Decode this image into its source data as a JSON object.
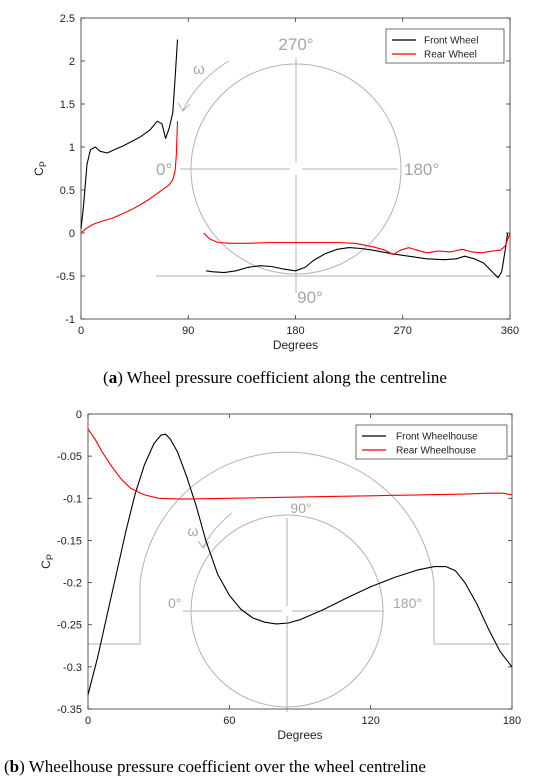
{
  "chart_data": [
    {
      "type": "line",
      "caption_tag": "a",
      "caption_text": "Wheel pressure coefficient along the centreline",
      "xlabel": "Degrees",
      "ylabel": "C",
      "ylabel_sub": "P",
      "xlim": [
        0,
        360
      ],
      "ylim": [
        -1,
        2.5
      ],
      "xticks": [
        "0",
        "90",
        "180",
        "270",
        "360"
      ],
      "yticks": [
        "2.5",
        "2",
        "1.5",
        "1",
        "0.5",
        "0",
        "-0.5",
        "-1"
      ],
      "legend_position": "top-right",
      "overlay_labels": {
        "top": "270°",
        "left": "0°",
        "right": "180°",
        "bottom": "90°",
        "rotation": "ω"
      },
      "series": [
        {
          "name": "Front Wheel",
          "color": "#000000",
          "segments": [
            [
              [
                0,
                0.05
              ],
              [
                2,
                0.3
              ],
              [
                5,
                0.8
              ],
              [
                8,
                0.97
              ],
              [
                12,
                1.0
              ],
              [
                16,
                0.95
              ],
              [
                22,
                0.93
              ],
              [
                28,
                0.97
              ],
              [
                35,
                1.01
              ],
              [
                42,
                1.06
              ],
              [
                50,
                1.12
              ],
              [
                58,
                1.2
              ],
              [
                64,
                1.3
              ],
              [
                68,
                1.27
              ],
              [
                71,
                1.1
              ],
              [
                74,
                1.22
              ],
              [
                77,
                1.4
              ],
              [
                79,
                1.8
              ],
              [
                81,
                2.25
              ]
            ],
            [
              [
                105,
                -0.44
              ],
              [
                110,
                -0.45
              ],
              [
                120,
                -0.46
              ],
              [
                130,
                -0.44
              ],
              [
                140,
                -0.4
              ],
              [
                150,
                -0.38
              ],
              [
                160,
                -0.39
              ],
              [
                170,
                -0.42
              ],
              [
                180,
                -0.44
              ],
              [
                188,
                -0.4
              ],
              [
                195,
                -0.32
              ],
              [
                205,
                -0.24
              ],
              [
                215,
                -0.19
              ],
              [
                225,
                -0.17
              ],
              [
                235,
                -0.18
              ],
              [
                245,
                -0.2
              ],
              [
                260,
                -0.24
              ],
              [
                275,
                -0.27
              ],
              [
                290,
                -0.3
              ],
              [
                305,
                -0.31
              ],
              [
                315,
                -0.3
              ],
              [
                322,
                -0.27
              ],
              [
                330,
                -0.3
              ],
              [
                338,
                -0.35
              ],
              [
                345,
                -0.45
              ],
              [
                350,
                -0.52
              ],
              [
                353,
                -0.45
              ],
              [
                356,
                -0.2
              ],
              [
                358,
                0.0
              ]
            ]
          ]
        },
        {
          "name": "Rear Wheel",
          "color": "#ff0000",
          "segments": [
            [
              [
                0,
                0.0
              ],
              [
                4,
                0.05
              ],
              [
                10,
                0.1
              ],
              [
                18,
                0.14
              ],
              [
                26,
                0.17
              ],
              [
                34,
                0.22
              ],
              [
                42,
                0.27
              ],
              [
                50,
                0.33
              ],
              [
                58,
                0.4
              ],
              [
                64,
                0.46
              ],
              [
                70,
                0.52
              ],
              [
                74,
                0.56
              ],
              [
                77,
                0.62
              ],
              [
                79,
                0.72
              ],
              [
                80,
                0.9
              ],
              [
                81,
                1.3
              ]
            ],
            [
              [
                103,
                0.0
              ],
              [
                108,
                -0.07
              ],
              [
                115,
                -0.11
              ],
              [
                125,
                -0.12
              ],
              [
                140,
                -0.12
              ],
              [
                160,
                -0.11
              ],
              [
                180,
                -0.11
              ],
              [
                200,
                -0.11
              ],
              [
                215,
                -0.11
              ],
              [
                230,
                -0.12
              ],
              [
                245,
                -0.16
              ],
              [
                255,
                -0.2
              ],
              [
                262,
                -0.25
              ],
              [
                268,
                -0.2
              ],
              [
                275,
                -0.17
              ],
              [
                282,
                -0.2
              ],
              [
                290,
                -0.23
              ],
              [
                300,
                -0.21
              ],
              [
                310,
                -0.22
              ],
              [
                320,
                -0.19
              ],
              [
                328,
                -0.22
              ],
              [
                336,
                -0.23
              ],
              [
                345,
                -0.21
              ],
              [
                352,
                -0.2
              ],
              [
                356,
                -0.15
              ],
              [
                360,
                0.0
              ]
            ]
          ]
        }
      ]
    },
    {
      "type": "line",
      "caption_tag": "b",
      "caption_text": "Wheelhouse pressure coefficient over the wheel centreline",
      "xlabel": "Degrees",
      "ylabel": "C",
      "ylabel_sub": "P",
      "xlim": [
        0,
        180
      ],
      "ylim": [
        -0.35,
        0
      ],
      "xticks": [
        "0",
        "60",
        "120",
        "180"
      ],
      "yticks": [
        "0",
        "-0.05",
        "-0.1",
        "-0.15",
        "-0.2",
        "-0.25",
        "-0.3",
        "-0.35"
      ],
      "legend_position": "top-right",
      "overlay_labels": {
        "top": "90°",
        "left": "0°",
        "right": "180°",
        "rotation": "ω"
      },
      "series": [
        {
          "name": "Front Wheelhouse",
          "color": "#000000",
          "segments": [
            [
              [
                0,
                -0.333
              ],
              [
                4,
                -0.29
              ],
              [
                8,
                -0.24
              ],
              [
                12,
                -0.19
              ],
              [
                16,
                -0.14
              ],
              [
                20,
                -0.095
              ],
              [
                24,
                -0.06
              ],
              [
                28,
                -0.035
              ],
              [
                31,
                -0.025
              ],
              [
                33,
                -0.024
              ],
              [
                35,
                -0.03
              ],
              [
                38,
                -0.045
              ],
              [
                42,
                -0.075
              ],
              [
                46,
                -0.11
              ],
              [
                50,
                -0.15
              ],
              [
                55,
                -0.19
              ],
              [
                60,
                -0.215
              ],
              [
                65,
                -0.232
              ],
              [
                70,
                -0.242
              ],
              [
                75,
                -0.247
              ],
              [
                80,
                -0.249
              ],
              [
                85,
                -0.248
              ],
              [
                90,
                -0.244
              ],
              [
                100,
                -0.232
              ],
              [
                110,
                -0.218
              ],
              [
                120,
                -0.205
              ],
              [
                130,
                -0.194
              ],
              [
                140,
                -0.185
              ],
              [
                147,
                -0.181
              ],
              [
                152,
                -0.181
              ],
              [
                156,
                -0.186
              ],
              [
                160,
                -0.2
              ],
              [
                165,
                -0.225
              ],
              [
                170,
                -0.255
              ],
              [
                175,
                -0.282
              ],
              [
                180,
                -0.3
              ]
            ]
          ]
        },
        {
          "name": "Rear Wheelhouse",
          "color": "#ff0000",
          "segments": [
            [
              [
                0,
                -0.018
              ],
              [
                3,
                -0.03
              ],
              [
                6,
                -0.045
              ],
              [
                10,
                -0.062
              ],
              [
                14,
                -0.077
              ],
              [
                18,
                -0.088
              ],
              [
                24,
                -0.096
              ],
              [
                30,
                -0.1
              ],
              [
                40,
                -0.101
              ],
              [
                60,
                -0.1
              ],
              [
                80,
                -0.099
              ],
              [
                100,
                -0.098
              ],
              [
                120,
                -0.097
              ],
              [
                140,
                -0.096
              ],
              [
                160,
                -0.095
              ],
              [
                170,
                -0.094
              ],
              [
                176,
                -0.094
              ],
              [
                180,
                -0.096
              ]
            ]
          ]
        }
      ]
    }
  ]
}
